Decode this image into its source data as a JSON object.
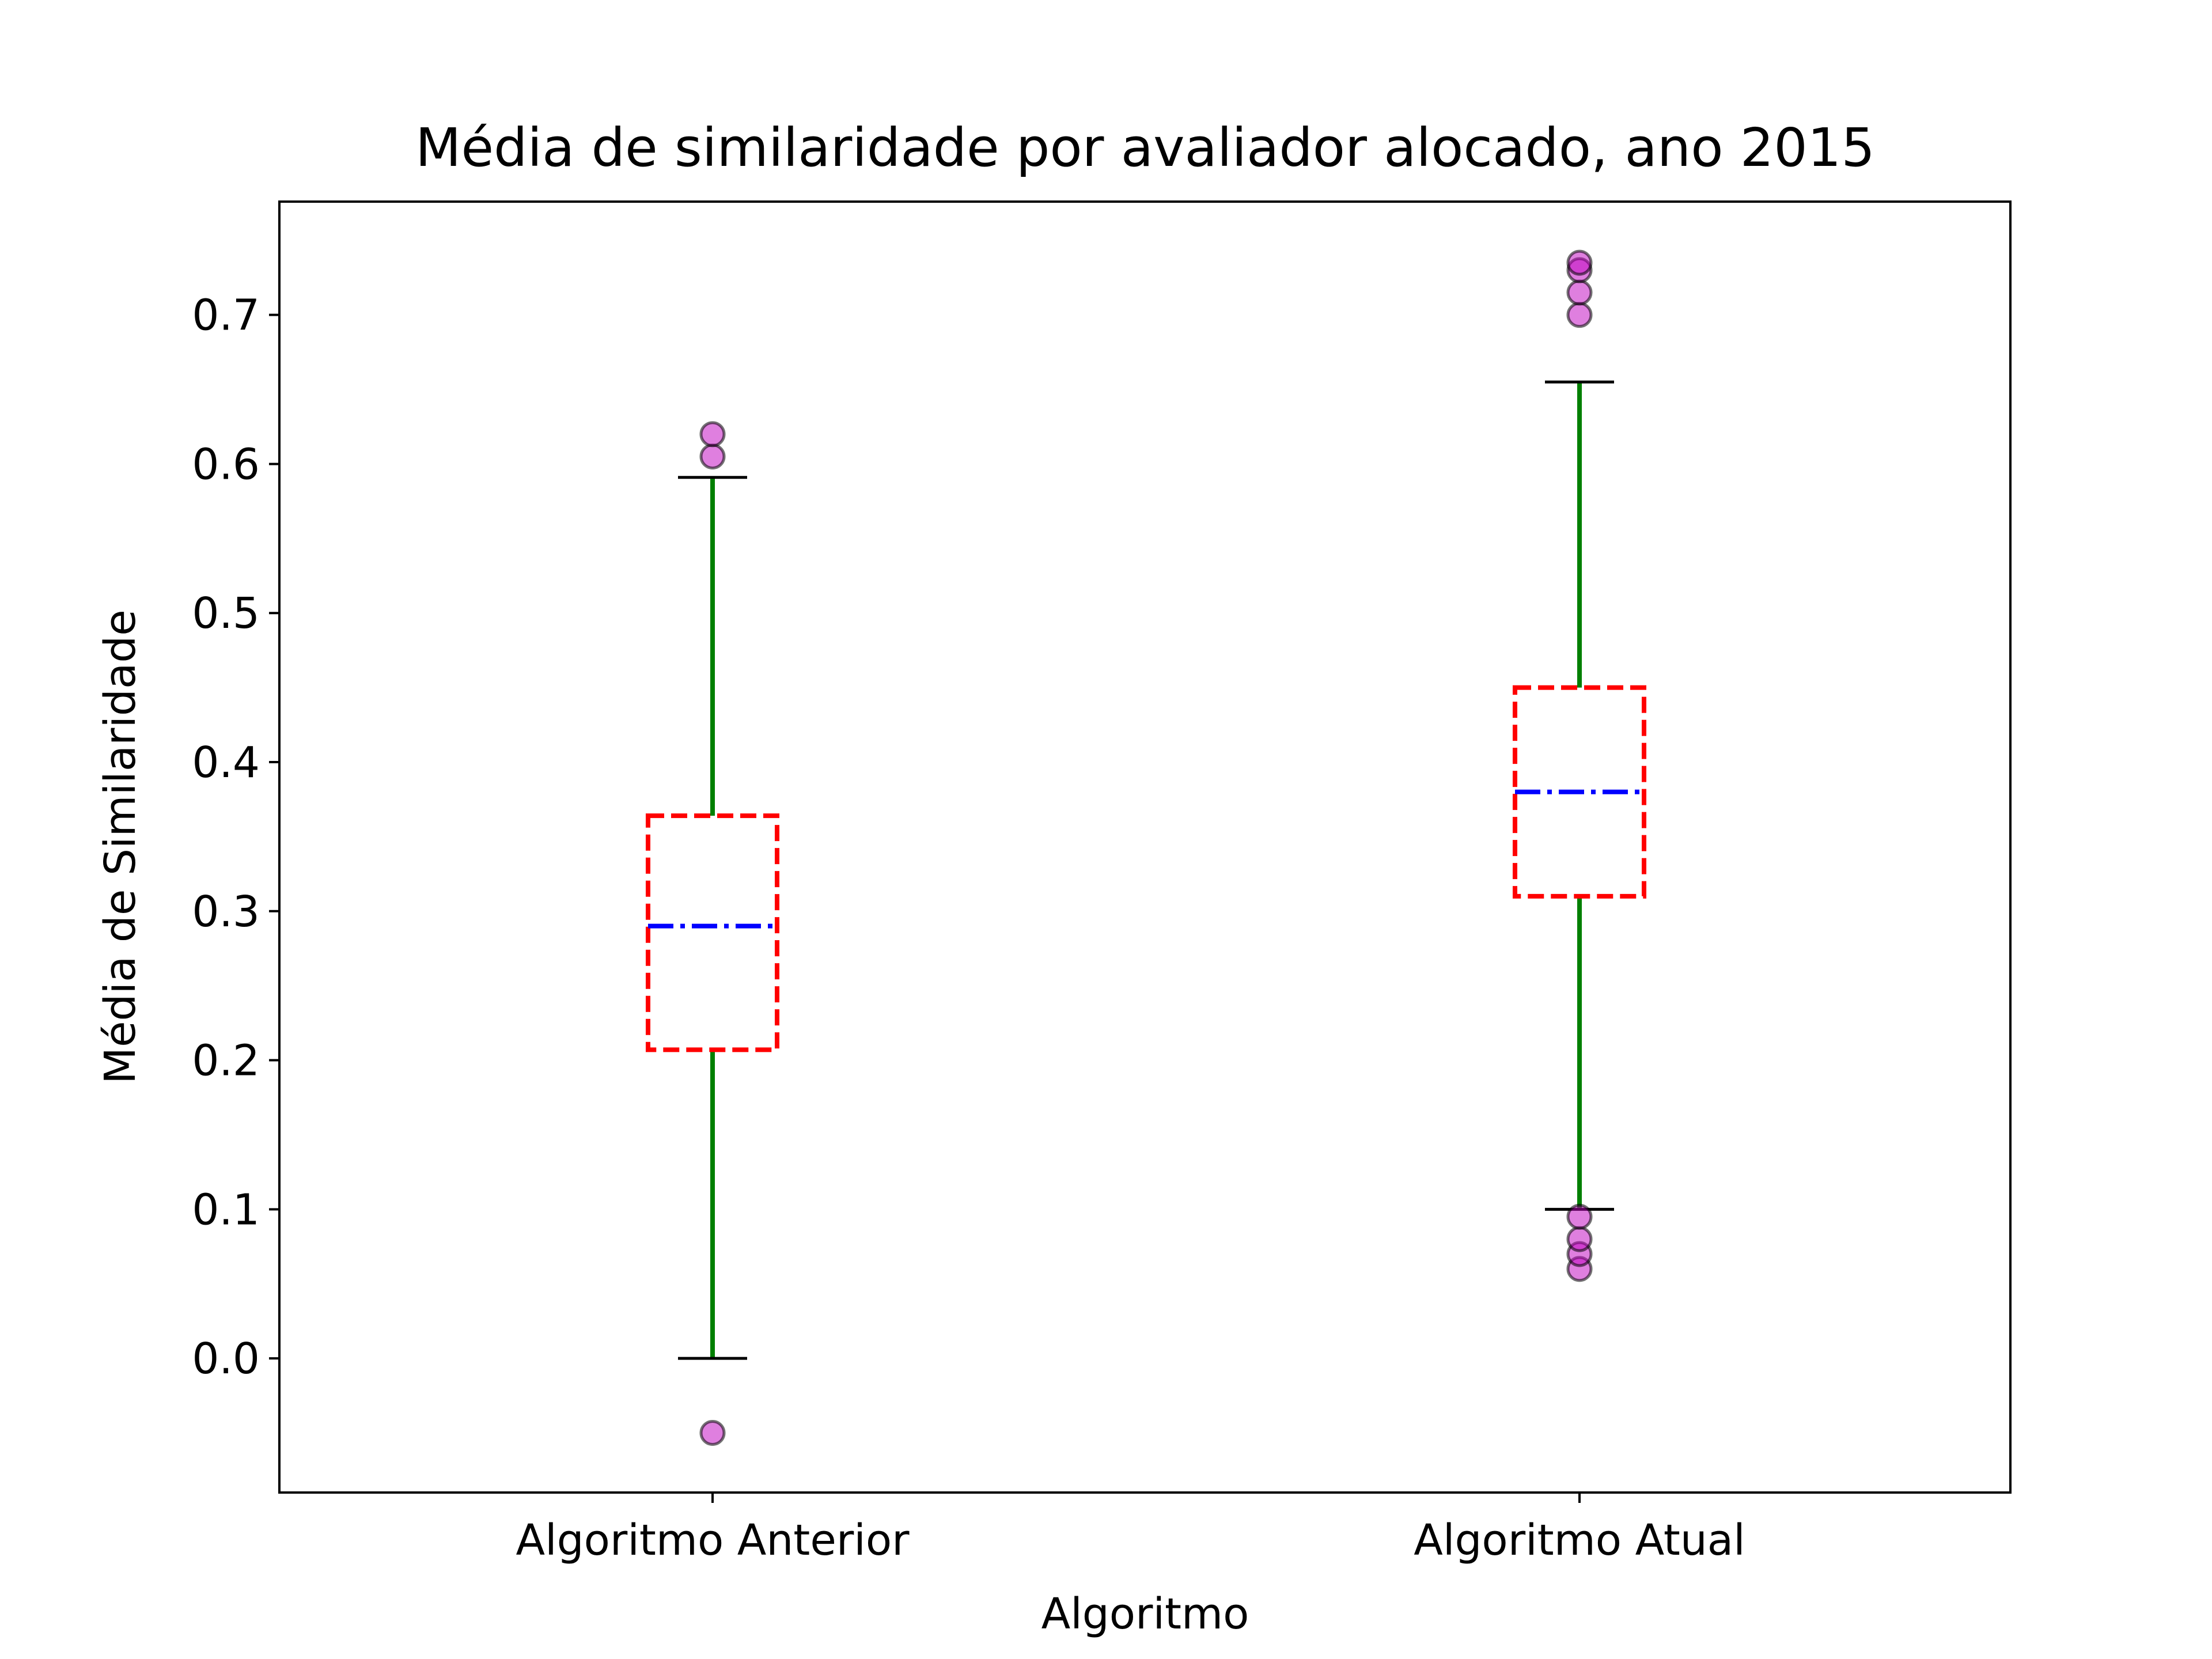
{
  "chart_data": {
    "type": "box",
    "title": "Média de similaridade por avaliador alocado, ano 2015",
    "xlabel": "Algoritmo",
    "ylabel": "Média de Similaridade",
    "ylim": [
      -0.09,
      0.776
    ],
    "yticks": [
      "0.0",
      "0.1",
      "0.2",
      "0.3",
      "0.4",
      "0.5",
      "0.6",
      "0.7"
    ],
    "categories": [
      "Algoritmo Anterior",
      "Algoritmo Atual"
    ],
    "boxes": [
      {
        "name": "Algoritmo Anterior",
        "whisker_low": 0.0,
        "q1": 0.207,
        "median": 0.29,
        "q3": 0.364,
        "whisker_high": 0.591,
        "outliers": [
          -0.05,
          0.605,
          0.62
        ]
      },
      {
        "name": "Algoritmo Atual",
        "whisker_low": 0.1,
        "q1": 0.31,
        "median": 0.38,
        "q3": 0.45,
        "whisker_high": 0.655,
        "outliers": [
          0.06,
          0.07,
          0.08,
          0.095,
          0.7,
          0.715,
          0.73,
          0.735
        ]
      }
    ],
    "grid": false,
    "legend": "none",
    "colors": {
      "box": "#ff0000",
      "median": "#0000ff",
      "whisker": "#008000",
      "cap": "#000000",
      "outlier_fill": "#bf00bf",
      "outlier_edge": "#000000"
    }
  }
}
